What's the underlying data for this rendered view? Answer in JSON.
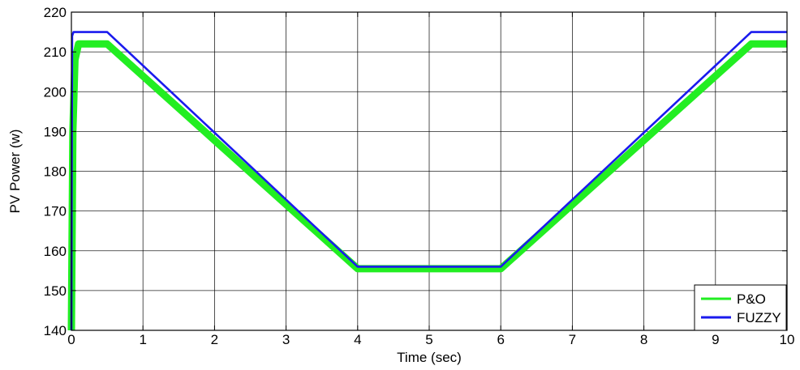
{
  "chart_data": {
    "type": "line",
    "title": "",
    "xlabel": "Time (sec)",
    "ylabel": "PV Power (w)",
    "xlim": [
      0,
      10
    ],
    "ylim": [
      140,
      220
    ],
    "xticks": [
      0,
      1,
      2,
      3,
      4,
      5,
      6,
      7,
      8,
      9,
      10
    ],
    "yticks": [
      140,
      150,
      160,
      170,
      180,
      190,
      200,
      210,
      220
    ],
    "grid": true,
    "legend_position": "bottom-right",
    "series": [
      {
        "name": "P&O",
        "color": "#22ee22",
        "x": [
          0,
          0.02,
          0.05,
          0.1,
          0.5,
          4.0,
          6.0,
          9.5,
          10.0
        ],
        "y": [
          140,
          190,
          208,
          212,
          212,
          155.5,
          155.5,
          212,
          212
        ]
      },
      {
        "name": "FUZZY",
        "color": "#1a1aee",
        "x": [
          0,
          0.01,
          0.03,
          0.5,
          4.0,
          6.0,
          9.5,
          10.0
        ],
        "y": [
          140,
          214,
          215,
          215,
          156,
          156,
          215,
          215
        ]
      }
    ]
  }
}
